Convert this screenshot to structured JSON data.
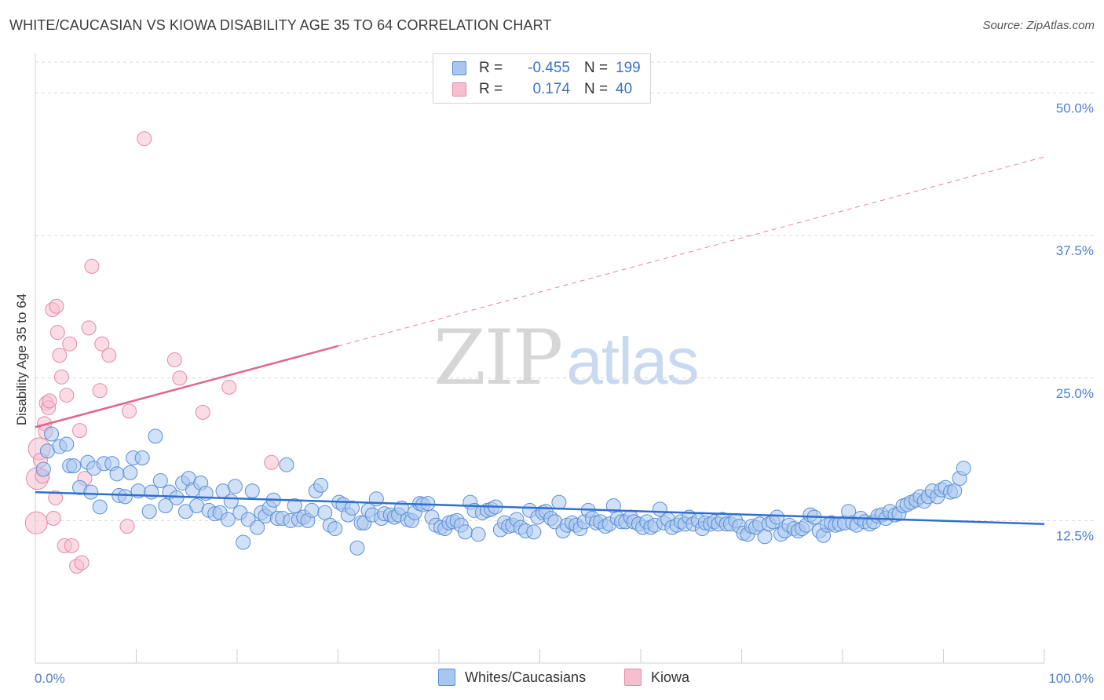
{
  "header": {
    "title": "WHITE/CAUCASIAN VS KIOWA DISABILITY AGE 35 TO 64 CORRELATION CHART",
    "source": "Source: ZipAtlas.com"
  },
  "legend": {
    "rows": [
      {
        "r_label": "R =",
        "r_value": "-0.455",
        "n_label": "N =",
        "n_value": "199"
      },
      {
        "r_label": "R =",
        "r_value": "0.174",
        "n_label": "N =",
        "n_value": "40"
      }
    ]
  },
  "bottom_legend": {
    "series1": "Whites/Caucasians",
    "series2": "Kiowa"
  },
  "watermark": {
    "part1": "ZIP",
    "part2": "atlas"
  },
  "colors": {
    "blue_fill": "#a9c6ee",
    "blue_stroke": "#5b8fd6",
    "blue_line": "#2f6fd1",
    "pink_fill": "#f6bfcf",
    "pink_stroke": "#e48aa7",
    "pink_line": "#e0658e",
    "grid": "#d9d9d9",
    "tick_text": "#4f7fd1"
  },
  "chart_data": {
    "type": "scatter",
    "title": "WHITE/CAUCASIAN VS KIOWA DISABILITY AGE 35 TO 64 CORRELATION CHART",
    "xlabel": "",
    "ylabel": "Disability Age 35 to 64",
    "xlim": [
      0,
      100
    ],
    "ylim": [
      0,
      53
    ],
    "x_tick_labels": [
      "0.0%",
      "100.0%"
    ],
    "y_ticks": [
      12.5,
      25.0,
      37.5,
      50.0
    ],
    "y_tick_labels": [
      "12.5%",
      "25.0%",
      "37.5%",
      "50.0%"
    ],
    "series": [
      {
        "name": "Whites/Caucasians",
        "r": -0.455,
        "n": 199,
        "trend": {
          "x": [
            0,
            100
          ],
          "y": [
            15.0,
            12.2
          ]
        },
        "points": [
          [
            0.8,
            17.0
          ],
          [
            1.2,
            18.6
          ],
          [
            1.6,
            20.1
          ],
          [
            2.4,
            19.0
          ],
          [
            3.1,
            19.2
          ],
          [
            3.4,
            17.3
          ],
          [
            3.8,
            17.3
          ],
          [
            4.4,
            15.4
          ],
          [
            5.2,
            17.6
          ],
          [
            5.5,
            15.0
          ],
          [
            5.8,
            17.1
          ],
          [
            6.4,
            13.7
          ],
          [
            6.8,
            17.5
          ],
          [
            7.6,
            17.5
          ],
          [
            8.1,
            16.6
          ],
          [
            8.3,
            14.7
          ],
          [
            8.9,
            14.6
          ],
          [
            9.4,
            16.7
          ],
          [
            9.7,
            18.0
          ],
          [
            10.2,
            15.1
          ],
          [
            10.6,
            18.0
          ],
          [
            11.3,
            13.3
          ],
          [
            11.5,
            15.0
          ],
          [
            11.9,
            19.9
          ],
          [
            12.4,
            16.0
          ],
          [
            12.9,
            13.8
          ],
          [
            13.3,
            15.0
          ],
          [
            14.0,
            14.5
          ],
          [
            14.6,
            15.8
          ],
          [
            14.9,
            13.3
          ],
          [
            15.2,
            16.2
          ],
          [
            15.6,
            15.2
          ],
          [
            16.0,
            13.8
          ],
          [
            16.4,
            15.8
          ],
          [
            16.9,
            14.9
          ],
          [
            17.2,
            13.4
          ],
          [
            17.8,
            13.1
          ],
          [
            18.3,
            13.2
          ],
          [
            18.6,
            15.1
          ],
          [
            19.1,
            12.6
          ],
          [
            19.4,
            14.2
          ],
          [
            19.8,
            15.5
          ],
          [
            20.3,
            13.2
          ],
          [
            20.6,
            10.6
          ],
          [
            21.1,
            12.6
          ],
          [
            21.5,
            15.1
          ],
          [
            22.0,
            11.9
          ],
          [
            22.4,
            13.2
          ],
          [
            22.8,
            12.9
          ],
          [
            23.2,
            13.6
          ],
          [
            23.6,
            14.3
          ],
          [
            24.0,
            12.7
          ],
          [
            24.5,
            12.7
          ],
          [
            24.9,
            17.4
          ],
          [
            25.3,
            12.5
          ],
          [
            25.7,
            13.8
          ],
          [
            26.1,
            12.6
          ],
          [
            26.6,
            12.8
          ],
          [
            27.0,
            12.5
          ],
          [
            27.4,
            13.4
          ],
          [
            27.8,
            15.1
          ],
          [
            28.3,
            15.6
          ],
          [
            28.7,
            13.2
          ],
          [
            29.2,
            12.1
          ],
          [
            29.7,
            11.8
          ],
          [
            30.1,
            14.1
          ],
          [
            30.5,
            13.9
          ],
          [
            31.0,
            13.0
          ],
          [
            31.4,
            13.6
          ],
          [
            31.9,
            10.1
          ],
          [
            32.3,
            12.3
          ],
          [
            32.6,
            12.3
          ],
          [
            33.0,
            13.4
          ],
          [
            33.4,
            13.0
          ],
          [
            33.8,
            14.4
          ],
          [
            34.3,
            12.7
          ],
          [
            34.6,
            13.1
          ],
          [
            35.2,
            13.0
          ],
          [
            35.6,
            12.8
          ],
          [
            36.0,
            13.0
          ],
          [
            36.3,
            13.6
          ],
          [
            36.9,
            12.6
          ],
          [
            37.3,
            12.5
          ],
          [
            37.6,
            13.2
          ],
          [
            38.1,
            14.0
          ],
          [
            38.4,
            13.9
          ],
          [
            38.9,
            14.0
          ],
          [
            39.3,
            12.8
          ],
          [
            39.7,
            12.1
          ],
          [
            40.2,
            11.9
          ],
          [
            40.6,
            11.8
          ],
          [
            41.0,
            12.3
          ],
          [
            41.4,
            12.4
          ],
          [
            41.8,
            12.5
          ],
          [
            42.2,
            12.1
          ],
          [
            42.6,
            11.5
          ],
          [
            43.1,
            14.1
          ],
          [
            43.5,
            13.4
          ],
          [
            43.9,
            11.3
          ],
          [
            44.3,
            13.2
          ],
          [
            44.8,
            13.4
          ],
          [
            45.2,
            13.5
          ],
          [
            45.6,
            13.7
          ],
          [
            46.1,
            11.7
          ],
          [
            46.5,
            12.3
          ],
          [
            46.9,
            12.0
          ],
          [
            47.3,
            12.1
          ],
          [
            47.7,
            12.6
          ],
          [
            48.1,
            11.9
          ],
          [
            48.6,
            11.6
          ],
          [
            49.0,
            13.4
          ],
          [
            49.4,
            11.5
          ],
          [
            49.8,
            12.8
          ],
          [
            50.3,
            13.2
          ],
          [
            50.6,
            13.3
          ],
          [
            51.1,
            12.7
          ],
          [
            51.5,
            12.4
          ],
          [
            51.9,
            14.1
          ],
          [
            52.3,
            11.6
          ],
          [
            52.7,
            12.1
          ],
          [
            53.2,
            12.3
          ],
          [
            53.6,
            12.1
          ],
          [
            54.0,
            11.8
          ],
          [
            54.4,
            12.4
          ],
          [
            54.8,
            13.4
          ],
          [
            55.2,
            12.7
          ],
          [
            55.6,
            12.3
          ],
          [
            56.0,
            12.4
          ],
          [
            56.5,
            12.0
          ],
          [
            56.9,
            12.2
          ],
          [
            57.3,
            13.8
          ],
          [
            57.7,
            12.7
          ],
          [
            58.1,
            12.4
          ],
          [
            58.5,
            12.4
          ],
          [
            59.0,
            12.8
          ],
          [
            59.3,
            12.4
          ],
          [
            59.8,
            12.2
          ],
          [
            60.2,
            11.9
          ],
          [
            60.6,
            12.4
          ],
          [
            61.0,
            11.9
          ],
          [
            61.4,
            12.1
          ],
          [
            61.9,
            13.5
          ],
          [
            62.3,
            12.3
          ],
          [
            62.7,
            12.6
          ],
          [
            63.1,
            11.9
          ],
          [
            63.6,
            12.1
          ],
          [
            64.0,
            12.4
          ],
          [
            64.4,
            12.2
          ],
          [
            64.8,
            12.8
          ],
          [
            65.2,
            12.2
          ],
          [
            65.7,
            12.5
          ],
          [
            66.1,
            11.8
          ],
          [
            66.4,
            12.3
          ],
          [
            66.9,
            12.2
          ],
          [
            67.3,
            12.4
          ],
          [
            67.7,
            12.2
          ],
          [
            68.1,
            12.6
          ],
          [
            68.5,
            12.2
          ],
          [
            68.9,
            12.2
          ],
          [
            69.4,
            12.5
          ],
          [
            69.8,
            12.0
          ],
          [
            70.2,
            11.4
          ],
          [
            70.6,
            11.3
          ],
          [
            71.0,
            12.0
          ],
          [
            71.4,
            11.9
          ],
          [
            71.8,
            12.2
          ],
          [
            72.3,
            11.1
          ],
          [
            72.7,
            12.2
          ],
          [
            73.1,
            12.4
          ],
          [
            73.5,
            12.8
          ],
          [
            73.9,
            11.3
          ],
          [
            74.3,
            11.6
          ],
          [
            74.7,
            12.1
          ],
          [
            75.2,
            11.8
          ],
          [
            75.6,
            11.6
          ],
          [
            76.0,
            11.8
          ],
          [
            76.4,
            12.1
          ],
          [
            76.8,
            13.0
          ],
          [
            77.2,
            12.8
          ],
          [
            77.7,
            11.6
          ],
          [
            78.1,
            11.2
          ],
          [
            78.5,
            12.1
          ],
          [
            78.9,
            12.3
          ],
          [
            79.3,
            12.1
          ],
          [
            79.7,
            12.2
          ],
          [
            80.2,
            12.3
          ],
          [
            80.6,
            13.3
          ],
          [
            81.0,
            12.3
          ],
          [
            81.4,
            12.1
          ],
          [
            81.8,
            12.7
          ],
          [
            82.2,
            12.4
          ],
          [
            82.7,
            12.2
          ],
          [
            83.1,
            12.4
          ],
          [
            83.5,
            12.9
          ],
          [
            83.9,
            13.0
          ],
          [
            84.3,
            12.7
          ],
          [
            84.7,
            13.3
          ],
          [
            85.2,
            13.0
          ],
          [
            85.6,
            13.1
          ],
          [
            86.0,
            13.8
          ],
          [
            86.4,
            13.9
          ],
          [
            86.8,
            14.1
          ],
          [
            87.3,
            14.3
          ],
          [
            87.7,
            14.6
          ],
          [
            88.1,
            14.2
          ],
          [
            88.5,
            14.6
          ],
          [
            88.9,
            15.1
          ],
          [
            89.4,
            14.6
          ],
          [
            89.8,
            15.2
          ],
          [
            90.2,
            15.4
          ],
          [
            90.7,
            15.0
          ],
          [
            91.1,
            15.1
          ],
          [
            91.6,
            16.2
          ],
          [
            92.0,
            17.1
          ]
        ]
      },
      {
        "name": "Kiowa",
        "r": 0.174,
        "n": 40,
        "trend": {
          "x": [
            0,
            100
          ],
          "y": [
            20.7,
            44.4
          ]
        },
        "trend_solid_until_x": 30,
        "points": [
          [
            0.1,
            12.3
          ],
          [
            0.2,
            16.2
          ],
          [
            0.4,
            18.8
          ],
          [
            0.5,
            17.8
          ],
          [
            0.7,
            16.4
          ],
          [
            0.9,
            21.0
          ],
          [
            1.0,
            20.3
          ],
          [
            1.1,
            22.8
          ],
          [
            1.3,
            22.4
          ],
          [
            1.4,
            23.0
          ],
          [
            1.7,
            31.0
          ],
          [
            1.8,
            12.7
          ],
          [
            2.0,
            14.5
          ],
          [
            2.1,
            31.3
          ],
          [
            2.2,
            29.0
          ],
          [
            2.4,
            27.0
          ],
          [
            2.6,
            25.1
          ],
          [
            2.9,
            10.3
          ],
          [
            3.1,
            23.5
          ],
          [
            3.4,
            28.0
          ],
          [
            3.6,
            10.3
          ],
          [
            4.1,
            8.5
          ],
          [
            4.4,
            20.4
          ],
          [
            4.6,
            8.8
          ],
          [
            4.9,
            16.2
          ],
          [
            5.3,
            29.4
          ],
          [
            5.6,
            34.8
          ],
          [
            6.4,
            23.9
          ],
          [
            6.6,
            28.0
          ],
          [
            7.3,
            27.0
          ],
          [
            9.1,
            12.0
          ],
          [
            9.3,
            22.1
          ],
          [
            10.8,
            46.0
          ],
          [
            13.8,
            26.6
          ],
          [
            14.3,
            25.0
          ],
          [
            16.6,
            22.0
          ],
          [
            19.2,
            24.2
          ],
          [
            23.4,
            17.6
          ]
        ]
      }
    ]
  }
}
